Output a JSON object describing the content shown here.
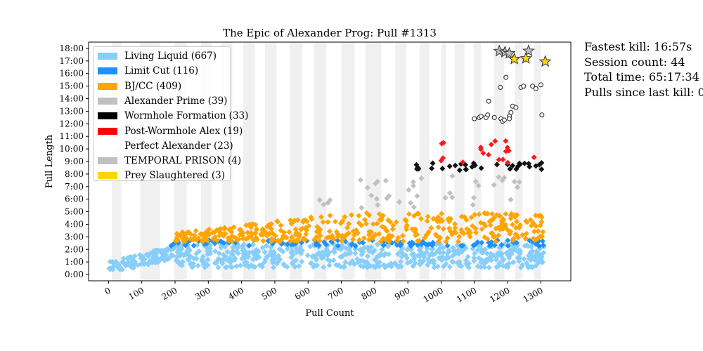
{
  "stats": {
    "fastest_kill": "Fastest kill: 16:57s",
    "session_count": "Session count: 44",
    "total_time": "Total time: 65:17:34",
    "pulls_since_kill": "Pulls since last kill: 0"
  },
  "chart_data": {
    "type": "scatter",
    "title": "The Epic of Alexander Prog: Pull #1313",
    "xlabel": "Pull Count",
    "ylabel": "Pull Length",
    "xlim": [
      -60,
      1390
    ],
    "ylim": [
      -0.5,
      18.5
    ],
    "x_ticks": [
      0,
      100,
      200,
      300,
      400,
      500,
      600,
      700,
      800,
      900,
      1000,
      1100,
      1200,
      1300
    ],
    "y_ticks": [
      {
        "v": 0,
        "label": "0:00"
      },
      {
        "v": 1,
        "label": "1:00"
      },
      {
        "v": 2,
        "label": "2:00"
      },
      {
        "v": 3,
        "label": "3:00"
      },
      {
        "v": 4,
        "label": "4:00"
      },
      {
        "v": 5,
        "label": "5:00"
      },
      {
        "v": 6,
        "label": "6:00"
      },
      {
        "v": 7,
        "label": "7:00"
      },
      {
        "v": 8,
        "label": "8:00"
      },
      {
        "v": 9,
        "label": "9:00"
      },
      {
        "v": 10,
        "label": "10:00"
      },
      {
        "v": 11,
        "label": "11:00"
      },
      {
        "v": 12,
        "label": "12:00"
      },
      {
        "v": 13,
        "label": "13:00"
      },
      {
        "v": 14,
        "label": "14:00"
      },
      {
        "v": 15,
        "label": "15:00"
      },
      {
        "v": 16,
        "label": "16:00"
      },
      {
        "v": 17,
        "label": "17:00"
      },
      {
        "v": 18,
        "label": "18:00"
      }
    ],
    "session_bands": [
      [
        10,
        38
      ],
      [
        95,
        155
      ],
      [
        198,
        235
      ],
      [
        278,
        310
      ],
      [
        340,
        372
      ],
      [
        405,
        440
      ],
      [
        470,
        505
      ],
      [
        545,
        582
      ],
      [
        618,
        655
      ],
      [
        700,
        740
      ],
      [
        772,
        820
      ],
      [
        862,
        895
      ],
      [
        935,
        965
      ],
      [
        1000,
        1015
      ],
      [
        1040,
        1070
      ],
      [
        1098,
        1120
      ],
      [
        1160,
        1190
      ],
      [
        1222,
        1245
      ],
      [
        1280,
        1300
      ]
    ],
    "series": [
      {
        "name": "Living Liquid (667)",
        "color": "#87cefa",
        "marker": "diamond"
      },
      {
        "name": "Limit Cut (116)",
        "color": "#1e90ff",
        "marker": "diamond"
      },
      {
        "name": "BJ/CC (409)",
        "color": "#ffa500",
        "marker": "diamond"
      },
      {
        "name": "Alexander Prime (39)",
        "color": "#c0c0c0",
        "marker": "diamond"
      },
      {
        "name": "Wormhole Formation (33)",
        "color": "#000000",
        "marker": "diamond"
      },
      {
        "name": "Post-Wormhole Alex (19)",
        "color": "#ff0000",
        "marker": "diamond"
      },
      {
        "name": "Perfect Alexander (23)",
        "color": "#ffffff",
        "marker": "circle"
      },
      {
        "name": "TEMPORAL PRISON (4)",
        "color": "#c0c0c0",
        "marker": "star"
      },
      {
        "name": "Prey Slaughtered (3)",
        "color": "#ffd700",
        "marker": "star"
      }
    ],
    "stars_gray": [
      [
        1175,
        17.78
      ],
      [
        1192,
        17.7
      ],
      [
        1205,
        17.6
      ],
      [
        1263,
        17.8
      ]
    ],
    "stars_gold": [
      [
        1220,
        17.15
      ],
      [
        1255,
        17.2
      ],
      [
        1313,
        16.95
      ]
    ],
    "perfect_alex_points": [
      [
        1115,
        12.5
      ],
      [
        1120,
        12.6
      ],
      [
        1135,
        12.5
      ],
      [
        1140,
        12.7
      ],
      [
        1160,
        12.5
      ],
      [
        1180,
        12.4
      ],
      [
        1185,
        12.2
      ],
      [
        1190,
        12.3
      ],
      [
        1205,
        12.6
      ],
      [
        1210,
        12.9
      ],
      [
        1215,
        13.4
      ],
      [
        1225,
        13.3
      ],
      [
        1178,
        14.9
      ],
      [
        1195,
        15.7
      ],
      [
        1240,
        14.9
      ],
      [
        1248,
        15.0
      ],
      [
        1275,
        15.0
      ],
      [
        1285,
        14.8
      ],
      [
        1300,
        15.1
      ],
      [
        1303,
        12.7
      ],
      [
        1143,
        13.8
      ],
      [
        1100,
        12.4
      ],
      [
        1205,
        12.4
      ]
    ]
  }
}
